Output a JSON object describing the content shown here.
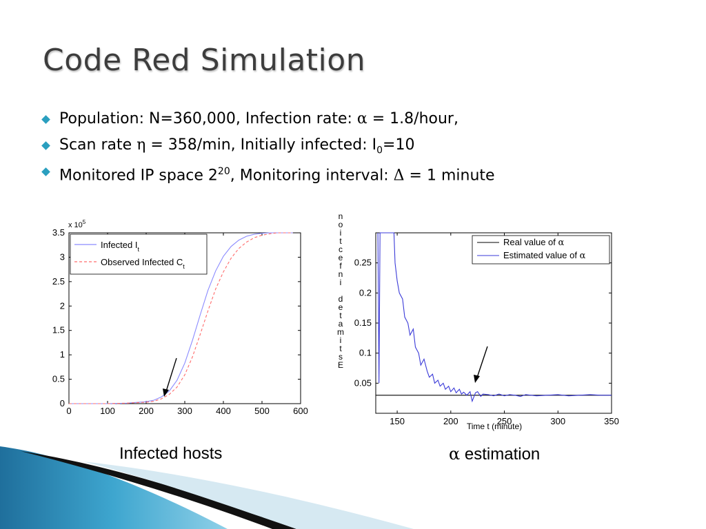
{
  "slide": {
    "title": "Code Red Simulation",
    "accent_color": "#2a9fbf",
    "bullets": [
      {
        "parts": [
          "Population: N=360,000,  Infection rate:  ",
          "α",
          " = 1.8/hour,"
        ]
      },
      {
        "parts": [
          "Scan rate  ",
          "η",
          " = 358/min,  Initially infected: I",
          "0",
          "=10"
        ]
      },
      {
        "parts": [
          "Monitored IP space 2",
          "20",
          ",  Monitoring interval:  ",
          "Δ",
          " = 1 minute"
        ]
      }
    ],
    "captions": {
      "left": "Infected hosts",
      "right_symbol": "α",
      "right_text": " estimation"
    }
  },
  "chart_data": [
    {
      "type": "line",
      "xlim": [
        0,
        600
      ],
      "ylim": [
        0,
        3.5
      ],
      "x_ticks": [
        "0",
        "100",
        "200",
        "300",
        "400",
        "500",
        "600"
      ],
      "y_ticks": [
        "0",
        "0.5",
        "1",
        "1.5",
        "2",
        "2.5",
        "3",
        "3.5"
      ],
      "y_multiplier": "x 10",
      "y_multiplier_exp": "5",
      "legend_position": "top-left",
      "grid": false,
      "series": [
        {
          "name": "Infected I",
          "name_sub": "t",
          "color": "#8a8aff",
          "dash": "solid",
          "x": [
            0,
            100,
            150,
            200,
            220,
            240,
            260,
            280,
            300,
            320,
            340,
            360,
            380,
            400,
            420,
            440,
            460,
            480,
            500,
            520,
            540,
            560,
            580
          ],
          "y": [
            0.0,
            0.0,
            0.01,
            0.04,
            0.07,
            0.14,
            0.26,
            0.48,
            0.83,
            1.3,
            1.82,
            2.32,
            2.72,
            3.02,
            3.22,
            3.35,
            3.43,
            3.47,
            3.49,
            3.5,
            3.5,
            3.5,
            3.5
          ]
        },
        {
          "name": "Observed Infected C",
          "name_sub": "t",
          "color": "#ff6b6b",
          "dash": "dashed",
          "x": [
            0,
            100,
            150,
            200,
            220,
            240,
            260,
            280,
            300,
            320,
            340,
            360,
            380,
            400,
            420,
            440,
            460,
            480,
            500,
            520,
            540,
            560,
            580
          ],
          "y": [
            0.0,
            0.0,
            0.01,
            0.03,
            0.05,
            0.1,
            0.19,
            0.34,
            0.59,
            0.96,
            1.42,
            1.9,
            2.35,
            2.7,
            2.98,
            3.18,
            3.31,
            3.4,
            3.45,
            3.48,
            3.5,
            3.5,
            3.5
          ]
        }
      ]
    },
    {
      "type": "line",
      "xlim": [
        130,
        350
      ],
      "ylim": [
        0,
        0.3
      ],
      "x_ticks": [
        "150",
        "200",
        "250",
        "300",
        "350"
      ],
      "y_ticks": [
        "0.05",
        "0.1",
        "0.15",
        "0.2",
        "0.25"
      ],
      "xlabel": "Time t (minute)",
      "ylabel": "Estimated infection",
      "legend_position": "top-right",
      "grid": false,
      "series": [
        {
          "name": "Real value of ",
          "name_symbol": "α",
          "color": "#000000",
          "x": [
            130,
            350
          ],
          "y": [
            0.03,
            0.03
          ]
        },
        {
          "name": "Estimated value of ",
          "name_symbol": "α",
          "color": "#3a3ad8",
          "x": [
            132,
            133,
            134,
            135,
            137,
            140,
            142,
            145,
            147,
            148,
            150,
            152,
            155,
            157,
            160,
            162,
            165,
            167,
            170,
            172,
            175,
            178,
            180,
            183,
            185,
            188,
            190,
            193,
            195,
            198,
            200,
            203,
            205,
            208,
            210,
            212,
            215,
            218,
            220,
            223,
            225,
            228,
            230,
            235,
            240,
            245,
            250,
            255,
            260,
            265,
            270,
            280,
            290,
            300,
            310,
            320,
            330,
            340,
            350
          ],
          "y": [
            0.3,
            0.05,
            0.3,
            0.3,
            0.3,
            0.3,
            0.3,
            0.3,
            0.3,
            0.25,
            0.22,
            0.2,
            0.19,
            0.16,
            0.15,
            0.13,
            0.14,
            0.11,
            0.1,
            0.08,
            0.09,
            0.07,
            0.06,
            0.065,
            0.05,
            0.055,
            0.045,
            0.05,
            0.04,
            0.045,
            0.036,
            0.042,
            0.034,
            0.04,
            0.032,
            0.035,
            0.03,
            0.036,
            0.02,
            0.034,
            0.036,
            0.028,
            0.032,
            0.031,
            0.029,
            0.032,
            0.029,
            0.031,
            0.03,
            0.028,
            0.031,
            0.029,
            0.03,
            0.031,
            0.029,
            0.03,
            0.031,
            0.03,
            0.03
          ]
        }
      ]
    }
  ]
}
